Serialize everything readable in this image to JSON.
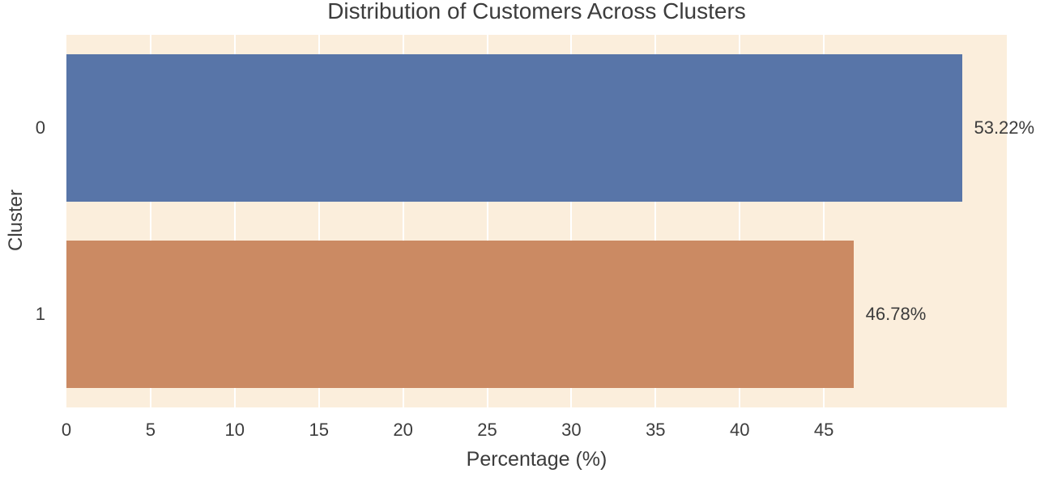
{
  "chart_data": {
    "type": "bar",
    "orientation": "horizontal",
    "title": "Distribution of Customers Across Clusters",
    "xlabel": "Percentage (%)",
    "ylabel": "Cluster",
    "categories": [
      "0",
      "1"
    ],
    "values": [
      53.22,
      46.78
    ],
    "bar_labels": [
      "53.22%",
      "46.78%"
    ],
    "bar_colors": [
      "#5875A8",
      "#CB8A63"
    ],
    "xlim": [
      0,
      55.87
    ],
    "xticks": [
      0,
      5,
      10,
      15,
      20,
      25,
      30,
      35,
      40,
      45
    ],
    "grid": true,
    "legend": "none",
    "plot_background": "#FBEEDC",
    "grid_color": "#FFFFFF",
    "text_color": "#3C3C3C",
    "figure_background": "#FFFFFF"
  }
}
